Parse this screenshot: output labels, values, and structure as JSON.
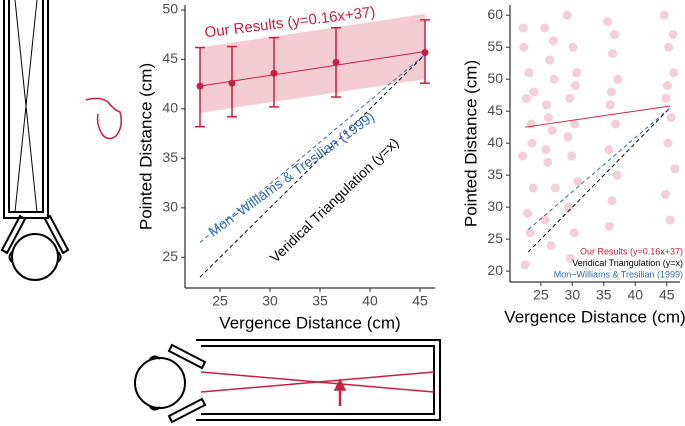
{
  "chart_data": [
    {
      "type": "errorbar",
      "x_label": "Vergence Distance (cm)",
      "y_label": "Pointed Distance (cm)",
      "xlim": [
        21.5,
        46.5
      ],
      "ylim": [
        21.9,
        50.5
      ],
      "xticks": [
        25,
        30,
        35,
        40,
        45
      ],
      "yticks": [
        25,
        30,
        35,
        40,
        45,
        50
      ],
      "series": [
        {
          "color": "#c8203f",
          "x": [
            23,
            26.2,
            30.4,
            36.6,
            45.5
          ],
          "values": [
            42.3,
            42.6,
            43.6,
            44.7,
            45.7
          ],
          "lower": [
            38.2,
            39.2,
            40.2,
            41.2,
            42.6
          ],
          "upper": [
            46.2,
            46.3,
            47.2,
            48.2,
            49.0
          ]
        }
      ],
      "band": {
        "color": "#f2c4cc",
        "x": [
          23,
          45.5
        ],
        "lower": [
          39.6,
          43.0
        ],
        "upper": [
          46.2,
          49.6
        ]
      },
      "lines": [
        {
          "name": "Our Results (y=0.16x+37)",
          "color": "#c8203f",
          "style": "solid",
          "x": [
            23,
            45.5
          ],
          "values": [
            42.3,
            45.8
          ]
        },
        {
          "name": "Mon−Williams & Tresilian (1999)",
          "color": "#2e6db4",
          "style": "dashed",
          "x": [
            23,
            45.5
          ],
          "values": [
            26.5,
            45.5
          ]
        },
        {
          "name": "Veridical Triangulation (y=x)",
          "color": "#000000",
          "style": "dashed",
          "x": [
            23,
            45.5
          ],
          "values": [
            23,
            45.5
          ]
        }
      ]
    },
    {
      "type": "scatter",
      "x_label": "Vergence Distance (cm)",
      "y_label": "Pointed Distance (cm)",
      "xlim": [
        20.1,
        47.1
      ],
      "ylim": [
        18.3,
        61.6
      ],
      "xticks": [
        25,
        30,
        35,
        40,
        45
      ],
      "yticks": [
        20,
        25,
        30,
        35,
        40,
        45,
        50,
        55,
        60
      ],
      "points": {
        "color": "#d9607a",
        "x": [
          22.3,
          23.1,
          22.7,
          23.5,
          22.1,
          23.8,
          22.9,
          23.3,
          22.5,
          23.6,
          22.2,
          23.9,
          25.6,
          26.4,
          27.1,
          25.9,
          26.8,
          26.1,
          27.3,
          25.7,
          26.6,
          27.0,
          26.2,
          25.8,
          29.2,
          30.1,
          30.7,
          29.6,
          30.4,
          29.9,
          30.9,
          29.4,
          30.3,
          29.7,
          30.5,
          29.3,
          35.6,
          36.4,
          37.2,
          36.0,
          36.9,
          35.8,
          37.1,
          36.3,
          35.9,
          36.7,
          36.2,
          44.6,
          45.3,
          46.1,
          44.9,
          45.7,
          45.2,
          46.3,
          44.8,
          45.5,
          46.0,
          45.1
        ],
        "values": [
          55,
          51,
          47,
          43,
          38,
          33,
          29,
          26,
          21,
          40,
          58,
          48,
          58,
          53,
          50,
          46,
          42,
          37,
          33,
          28,
          24,
          56,
          44,
          39,
          60,
          55,
          51,
          47,
          43,
          38,
          34,
          30,
          26,
          22,
          49,
          41,
          59,
          54,
          50,
          46,
          43,
          39,
          35,
          31,
          27,
          57,
          48,
          60,
          55,
          51,
          47,
          44,
          40,
          36,
          32,
          28,
          57,
          49
        ]
      },
      "lines": [
        {
          "name": "Our Results (y=0.16x+37)",
          "color": "#c8203f",
          "style": "solid",
          "x": [
            22.5,
            45.5
          ],
          "values": [
            42.5,
            45.8
          ]
        },
        {
          "name": "Veridical Triangulation (y=x)",
          "color": "#000000",
          "style": "dashed",
          "x": [
            23,
            45.5
          ],
          "values": [
            23,
            45.5
          ]
        },
        {
          "name": "Mon−Williams & Tresilian (1999)",
          "color": "#2e6db4",
          "style": "dashed",
          "x": [
            23,
            45.5
          ],
          "values": [
            26.5,
            45.5
          ]
        }
      ]
    }
  ]
}
